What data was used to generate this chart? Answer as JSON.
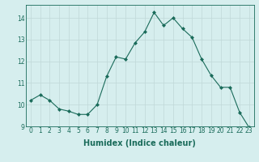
{
  "x": [
    0,
    1,
    2,
    3,
    4,
    5,
    6,
    7,
    8,
    9,
    10,
    11,
    12,
    13,
    14,
    15,
    16,
    17,
    18,
    19,
    20,
    21,
    22,
    23
  ],
  "y": [
    10.2,
    10.45,
    10.2,
    9.8,
    9.7,
    9.55,
    9.55,
    10.0,
    11.3,
    12.2,
    12.1,
    12.85,
    13.35,
    14.25,
    13.65,
    14.0,
    13.5,
    13.1,
    12.1,
    11.35,
    10.8,
    10.8,
    9.65,
    8.95
  ],
  "line_color": "#1a6b5a",
  "marker": "D",
  "marker_size": 2.0,
  "bg_color": "#d6eeee",
  "grid_color": "#c0d8d8",
  "xlabel": "Humidex (Indice chaleur)",
  "ylabel": "",
  "title": "",
  "xlim": [
    -0.5,
    23.5
  ],
  "ylim": [
    9,
    14.6
  ],
  "yticks": [
    9,
    10,
    11,
    12,
    13,
    14
  ],
  "xticks": [
    0,
    1,
    2,
    3,
    4,
    5,
    6,
    7,
    8,
    9,
    10,
    11,
    12,
    13,
    14,
    15,
    16,
    17,
    18,
    19,
    20,
    21,
    22,
    23
  ],
  "tick_label_color": "#1a6b5a",
  "label_color": "#1a6b5a",
  "font_size": 5.5,
  "label_font_size": 7.0
}
